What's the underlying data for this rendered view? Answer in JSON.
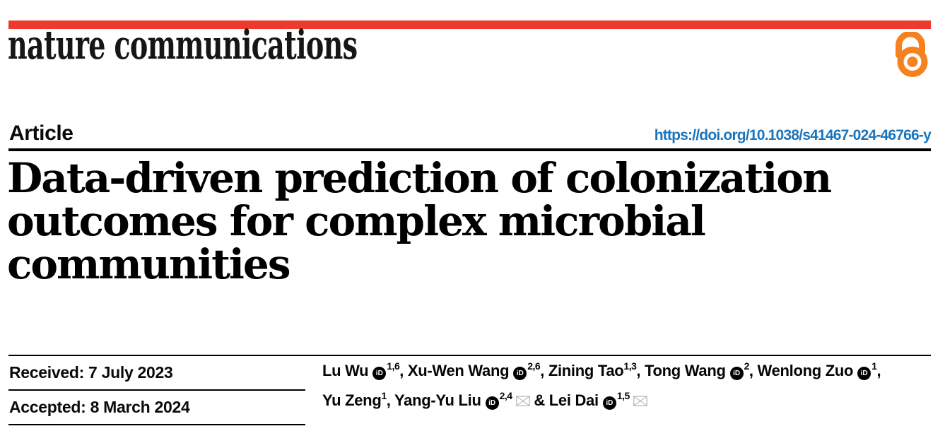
{
  "brand": {
    "logo_text": "nature communications",
    "bar_color": "#ee3a2c",
    "open_access_color": "#f6821f"
  },
  "article": {
    "kicker": "Article",
    "doi": "https://doi.org/10.1038/s41467-024-46766-y",
    "doi_color": "#1b75bb",
    "title_lines": [
      "Data-driven prediction of colonization",
      "outcomes for complex microbial",
      "communities"
    ]
  },
  "dates": {
    "received": "Received: 7 July 2023",
    "accepted": "Accepted: 8 March 2024"
  },
  "authors": {
    "orcid_icon_label": "iD",
    "line1": [
      {
        "text": "Lu Wu",
        "orcid": true,
        "sup": "1,6"
      },
      {
        "text": ", Xu-Wen Wang",
        "orcid": true,
        "sup": "2,6"
      },
      {
        "text": ", Zining Tao",
        "sup": "1,3"
      },
      {
        "text": ", Tong Wang",
        "orcid": true,
        "sup": "2"
      },
      {
        "text": ", Wenlong Zuo",
        "orcid": true,
        "sup": "1"
      },
      {
        "text": ","
      }
    ],
    "line2": [
      {
        "text": "Yu Zeng",
        "sup": "1"
      },
      {
        "text": ", Yang-Yu Liu",
        "orcid": true,
        "sup": "2,4",
        "email": true
      },
      {
        "text": " & Lei Dai",
        "orcid": true,
        "sup": "1,5",
        "email": true
      }
    ]
  }
}
